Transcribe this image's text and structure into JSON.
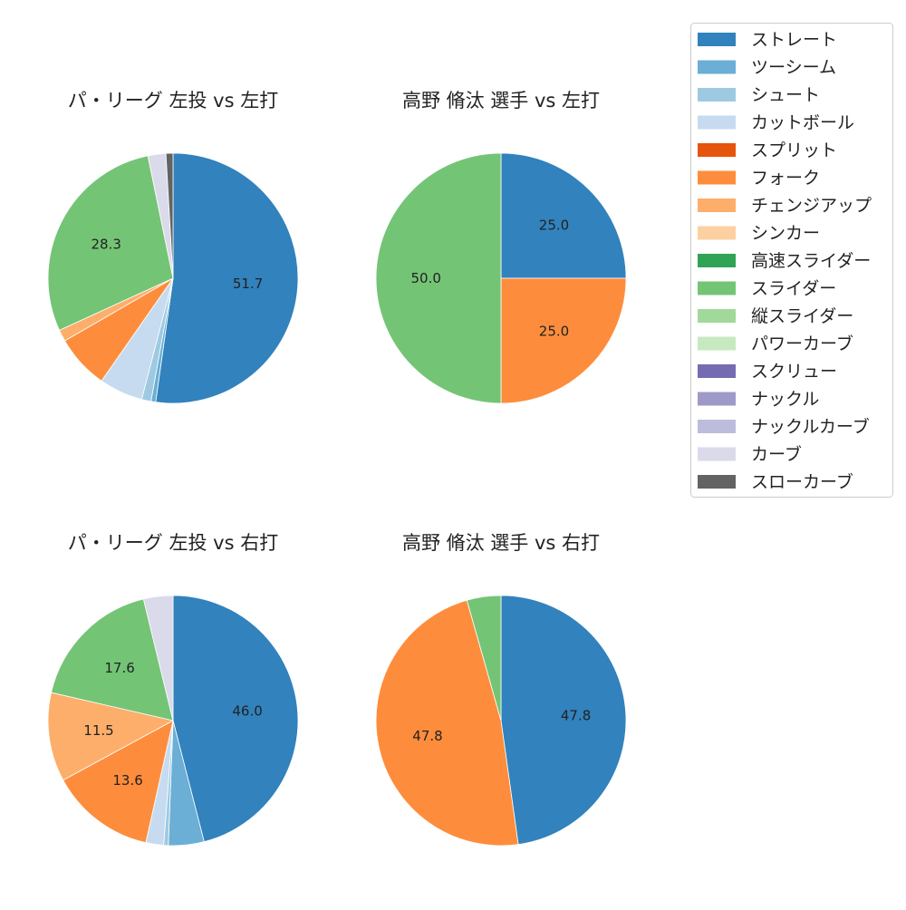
{
  "legend": [
    {
      "name": "ストレート",
      "color": "#3182bd"
    },
    {
      "name": "ツーシーム",
      "color": "#6baed6"
    },
    {
      "name": "シュート",
      "color": "#9ecae1"
    },
    {
      "name": "カットボール",
      "color": "#c6dbef"
    },
    {
      "name": "スプリット",
      "color": "#e6550d"
    },
    {
      "name": "フォーク",
      "color": "#fd8d3c"
    },
    {
      "name": "チェンジアップ",
      "color": "#fdae6b"
    },
    {
      "name": "シンカー",
      "color": "#fdd0a2"
    },
    {
      "name": "高速スライダー",
      "color": "#31a354"
    },
    {
      "name": "スライダー",
      "color": "#74c476"
    },
    {
      "name": "縦スライダー",
      "color": "#a1d99b"
    },
    {
      "name": "パワーカーブ",
      "color": "#c7e9c0"
    },
    {
      "name": "スクリュー",
      "color": "#756bb1"
    },
    {
      "name": "ナックル",
      "color": "#9e9ac8"
    },
    {
      "name": "ナックルカーブ",
      "color": "#bcbddc"
    },
    {
      "name": "カーブ",
      "color": "#dadaeb"
    },
    {
      "name": "スローカーブ",
      "color": "#636363"
    }
  ],
  "chart_data": [
    {
      "type": "pie",
      "title": "パ・リーグ 左投 vs 左打",
      "slices": [
        {
          "label": "ストレート",
          "value": 51.7,
          "shown": "51.7"
        },
        {
          "label": "ツーシーム",
          "value": 0.6,
          "shown": ""
        },
        {
          "label": "シュート",
          "value": 1.2,
          "shown": ""
        },
        {
          "label": "カットボール",
          "value": 5.6,
          "shown": ""
        },
        {
          "label": "フォーク",
          "value": 6.9,
          "shown": ""
        },
        {
          "label": "チェンジアップ",
          "value": 1.5,
          "shown": ""
        },
        {
          "label": "スライダー",
          "value": 28.3,
          "shown": "28.3"
        },
        {
          "label": "カーブ",
          "value": 2.3,
          "shown": ""
        },
        {
          "label": "スローカーブ",
          "value": 0.9,
          "shown": ""
        }
      ]
    },
    {
      "type": "pie",
      "title": "高野 脩汰 選手 vs 左打",
      "slices": [
        {
          "label": "ストレート",
          "value": 25.0,
          "shown": "25.0"
        },
        {
          "label": "フォーク",
          "value": 25.0,
          "shown": "25.0"
        },
        {
          "label": "スライダー",
          "value": 50.0,
          "shown": "50.0"
        }
      ]
    },
    {
      "type": "pie",
      "title": "パ・リーグ 左投 vs 右打",
      "slices": [
        {
          "label": "ストレート",
          "value": 46.0,
          "shown": "46.0"
        },
        {
          "label": "ツーシーム",
          "value": 4.6,
          "shown": ""
        },
        {
          "label": "シュート",
          "value": 0.6,
          "shown": ""
        },
        {
          "label": "カットボール",
          "value": 2.3,
          "shown": ""
        },
        {
          "label": "フォーク",
          "value": 13.6,
          "shown": "13.6"
        },
        {
          "label": "チェンジアップ",
          "value": 11.5,
          "shown": "11.5"
        },
        {
          "label": "スライダー",
          "value": 17.6,
          "shown": "17.6"
        },
        {
          "label": "カーブ",
          "value": 3.8,
          "shown": ""
        }
      ]
    },
    {
      "type": "pie",
      "title": "高野 脩汰 選手 vs 右打",
      "slices": [
        {
          "label": "ストレート",
          "value": 47.8,
          "shown": "47.8"
        },
        {
          "label": "フォーク",
          "value": 47.8,
          "shown": "47.8"
        },
        {
          "label": "スライダー",
          "value": 4.4,
          "shown": ""
        }
      ]
    }
  ]
}
